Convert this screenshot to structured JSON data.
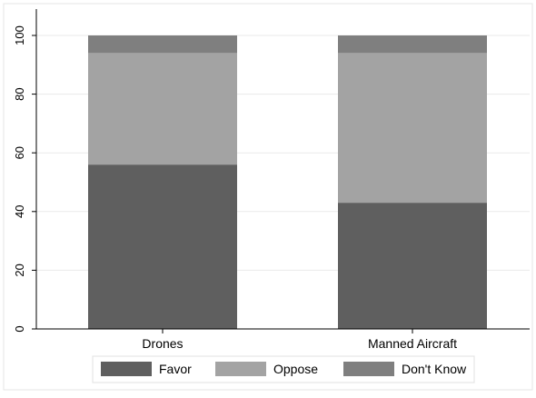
{
  "chart_data": {
    "type": "bar",
    "stacked": true,
    "categories": [
      "Drones",
      "Manned Aircraft"
    ],
    "series": [
      {
        "name": "Favor",
        "values": [
          56,
          43
        ],
        "color": "#5f5f5f"
      },
      {
        "name": "Oppose",
        "values": [
          38,
          51
        ],
        "color": "#a3a3a3"
      },
      {
        "name": "Don't Know",
        "values": [
          6,
          6
        ],
        "color": "#7f7f7f"
      }
    ],
    "yticks": [
      0,
      20,
      40,
      60,
      80,
      100
    ],
    "ylim": [
      0,
      100
    ],
    "grid": true,
    "legend": "bottom"
  }
}
